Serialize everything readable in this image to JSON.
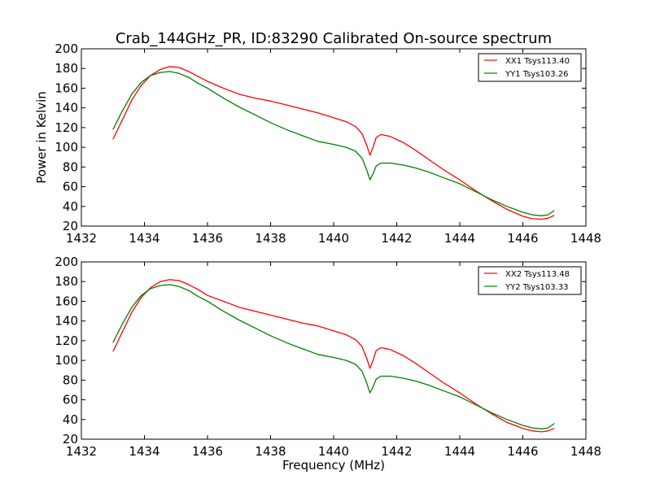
{
  "figure": {
    "title": "Crab_144GHz_PR, ID:83290 Calibrated On-source spectrum"
  },
  "chart_data": [
    {
      "type": "line",
      "title": "Crab_144GHz_PR, ID:83290 Calibrated On-source spectrum",
      "xlabel": "",
      "ylabel": "Power in Kelvin",
      "xlim": [
        1432,
        1448
      ],
      "ylim": [
        20,
        200
      ],
      "xticks": [
        "1432",
        "1434",
        "1436",
        "1438",
        "1440",
        "1442",
        "1444",
        "1446",
        "1448"
      ],
      "yticks": [
        "20",
        "40",
        "60",
        "80",
        "100",
        "120",
        "140",
        "160",
        "180",
        "200"
      ],
      "grid": false,
      "legend_position": "top-right",
      "series": [
        {
          "name": "XX1 Tsys113.40",
          "color": "#ff0000",
          "points": [
            [
              1433.0,
              108
            ],
            [
              1433.3,
              128
            ],
            [
              1433.6,
              148
            ],
            [
              1433.9,
              163
            ],
            [
              1434.2,
              173
            ],
            [
              1434.5,
              179
            ],
            [
              1434.8,
              182
            ],
            [
              1435.1,
              181
            ],
            [
              1435.4,
              177
            ],
            [
              1435.7,
              172
            ],
            [
              1436.0,
              167
            ],
            [
              1436.5,
              160
            ],
            [
              1437.0,
              154
            ],
            [
              1437.5,
              150
            ],
            [
              1438.0,
              147
            ],
            [
              1438.5,
              143
            ],
            [
              1439.0,
              139
            ],
            [
              1439.5,
              135
            ],
            [
              1440.0,
              130
            ],
            [
              1440.4,
              126
            ],
            [
              1440.7,
              121
            ],
            [
              1440.9,
              114
            ],
            [
              1441.05,
              102
            ],
            [
              1441.15,
              92
            ],
            [
              1441.25,
              100
            ],
            [
              1441.35,
              110
            ],
            [
              1441.5,
              113
            ],
            [
              1441.8,
              111
            ],
            [
              1442.2,
              105
            ],
            [
              1442.6,
              97
            ],
            [
              1443.0,
              88
            ],
            [
              1443.5,
              77
            ],
            [
              1444.0,
              67
            ],
            [
              1444.5,
              56
            ],
            [
              1445.0,
              46
            ],
            [
              1445.5,
              37
            ],
            [
              1446.0,
              30
            ],
            [
              1446.3,
              27.5
            ],
            [
              1446.6,
              27
            ],
            [
              1446.8,
              28
            ],
            [
              1447.0,
              31
            ]
          ]
        },
        {
          "name": "YY1 Tsys103.26",
          "color": "#008000",
          "points": [
            [
              1433.0,
              118
            ],
            [
              1433.3,
              137
            ],
            [
              1433.6,
              154
            ],
            [
              1433.9,
              166
            ],
            [
              1434.2,
              173
            ],
            [
              1434.5,
              176
            ],
            [
              1434.8,
              177
            ],
            [
              1435.1,
              175
            ],
            [
              1435.4,
              171
            ],
            [
              1435.7,
              165
            ],
            [
              1436.0,
              160
            ],
            [
              1436.5,
              150
            ],
            [
              1437.0,
              141
            ],
            [
              1437.5,
              133
            ],
            [
              1438.0,
              125
            ],
            [
              1438.5,
              118
            ],
            [
              1439.0,
              112
            ],
            [
              1439.5,
              106
            ],
            [
              1440.0,
              103
            ],
            [
              1440.4,
              100
            ],
            [
              1440.7,
              96
            ],
            [
              1440.9,
              89
            ],
            [
              1441.05,
              77
            ],
            [
              1441.15,
              67
            ],
            [
              1441.25,
              73
            ],
            [
              1441.35,
              81
            ],
            [
              1441.5,
              84
            ],
            [
              1441.8,
              84
            ],
            [
              1442.2,
              82
            ],
            [
              1442.6,
              79
            ],
            [
              1443.0,
              75
            ],
            [
              1443.5,
              69
            ],
            [
              1444.0,
              63
            ],
            [
              1444.5,
              55
            ],
            [
              1445.0,
              47
            ],
            [
              1445.5,
              40
            ],
            [
              1446.0,
              34
            ],
            [
              1446.3,
              31.5
            ],
            [
              1446.6,
              30.5
            ],
            [
              1446.8,
              31.5
            ],
            [
              1447.0,
              36
            ]
          ]
        }
      ]
    },
    {
      "type": "line",
      "title": "",
      "xlabel": "Frequency (MHz)",
      "ylabel": "",
      "xlim": [
        1432,
        1448
      ],
      "ylim": [
        20,
        200
      ],
      "xticks": [
        "1432",
        "1434",
        "1436",
        "1438",
        "1440",
        "1442",
        "1444",
        "1446",
        "1448"
      ],
      "yticks": [
        "20",
        "40",
        "60",
        "80",
        "100",
        "120",
        "140",
        "160",
        "180",
        "200"
      ],
      "grid": false,
      "legend_position": "top-right",
      "series": [
        {
          "name": "XX2 Tsys113.48",
          "color": "#ff0000",
          "points": [
            [
              1433.0,
              109
            ],
            [
              1433.3,
              129
            ],
            [
              1433.6,
              149
            ],
            [
              1433.9,
              164
            ],
            [
              1434.2,
              174
            ],
            [
              1434.5,
              180
            ],
            [
              1434.8,
              182
            ],
            [
              1435.1,
              181
            ],
            [
              1435.4,
              177
            ],
            [
              1435.7,
              172
            ],
            [
              1436.0,
              166
            ],
            [
              1436.5,
              160
            ],
            [
              1437.0,
              154
            ],
            [
              1437.5,
              150
            ],
            [
              1438.0,
              146
            ],
            [
              1438.5,
              142
            ],
            [
              1439.0,
              138
            ],
            [
              1439.5,
              135
            ],
            [
              1440.0,
              130
            ],
            [
              1440.4,
              126
            ],
            [
              1440.7,
              121
            ],
            [
              1440.9,
              114
            ],
            [
              1441.05,
              102
            ],
            [
              1441.15,
              92
            ],
            [
              1441.25,
              100
            ],
            [
              1441.35,
              110
            ],
            [
              1441.5,
              113
            ],
            [
              1441.8,
              111
            ],
            [
              1442.2,
              105
            ],
            [
              1442.6,
              97
            ],
            [
              1443.0,
              88
            ],
            [
              1443.5,
              77
            ],
            [
              1444.0,
              67
            ],
            [
              1444.5,
              56
            ],
            [
              1445.0,
              46
            ],
            [
              1445.5,
              37
            ],
            [
              1446.0,
              31
            ],
            [
              1446.3,
              28.5
            ],
            [
              1446.6,
              27.5
            ],
            [
              1446.8,
              28.5
            ],
            [
              1447.0,
              31
            ]
          ]
        },
        {
          "name": "YY2 Tsys103.33",
          "color": "#008000",
          "points": [
            [
              1433.0,
              118
            ],
            [
              1433.3,
              137
            ],
            [
              1433.6,
              154
            ],
            [
              1433.9,
              166
            ],
            [
              1434.2,
              173
            ],
            [
              1434.5,
              176
            ],
            [
              1434.8,
              177
            ],
            [
              1435.1,
              175
            ],
            [
              1435.4,
              171
            ],
            [
              1435.7,
              165
            ],
            [
              1436.0,
              160
            ],
            [
              1436.5,
              150
            ],
            [
              1437.0,
              141
            ],
            [
              1437.5,
              133
            ],
            [
              1438.0,
              125
            ],
            [
              1438.5,
              118
            ],
            [
              1439.0,
              112
            ],
            [
              1439.5,
              106
            ],
            [
              1440.0,
              103
            ],
            [
              1440.4,
              100
            ],
            [
              1440.7,
              96
            ],
            [
              1440.9,
              89
            ],
            [
              1441.05,
              77
            ],
            [
              1441.15,
              67
            ],
            [
              1441.25,
              73
            ],
            [
              1441.35,
              81
            ],
            [
              1441.5,
              84
            ],
            [
              1441.8,
              84
            ],
            [
              1442.2,
              82
            ],
            [
              1442.6,
              79
            ],
            [
              1443.0,
              75
            ],
            [
              1443.5,
              69
            ],
            [
              1444.0,
              63
            ],
            [
              1444.5,
              55
            ],
            [
              1445.0,
              47
            ],
            [
              1445.5,
              40
            ],
            [
              1446.0,
              34
            ],
            [
              1446.3,
              31.5
            ],
            [
              1446.6,
              30.5
            ],
            [
              1446.8,
              31.5
            ],
            [
              1447.0,
              36
            ]
          ]
        }
      ]
    }
  ]
}
